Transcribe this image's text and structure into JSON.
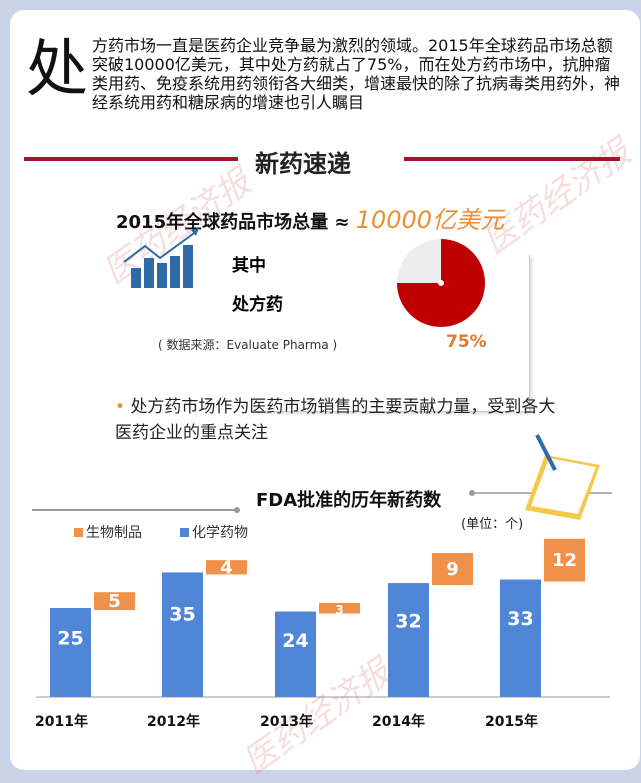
{
  "intro": {
    "drop_cap": "处",
    "text": "方药市场一直是医药企业竞争最为激烈的领域。2015年全球药品市场总额突破10000亿美元，其中处方药就占了75%，而在处方药市场中，抗肿瘤类用药、免疫系统用药领衔各大细类，增速最快的除了抗病毒类用药外，神经系统用药和糖尿病的增速也引人瞩目"
  },
  "section_title": "新药速递",
  "market": {
    "label": "2015年全球药品市场总量 ≈ ",
    "value": "10000亿美元",
    "sub1": "其中",
    "sub2": "处方药",
    "source": "( 数据来源：Evaluate Pharma )",
    "share_label": "75%",
    "share": 0.75
  },
  "bullet": "处方药市场作为医药市场销售的主要贡献力量，受到各大医药企业的重点关注",
  "watermark": "医药经济报",
  "colors": {
    "red": "#c00000",
    "orange": "#f0914a",
    "blue": "#4f86d6"
  },
  "chart_data": {
    "type": "bar",
    "title": "FDA批准的历年新药数",
    "unit": "(单位：个)",
    "categories": [
      "2011年",
      "2012年",
      "2013年",
      "2014年",
      "2015年"
    ],
    "series": [
      {
        "name": "生物制品",
        "values": [
          5,
          4,
          3,
          9,
          12
        ]
      },
      {
        "name": "化学药物",
        "values": [
          25,
          35,
          24,
          32,
          33
        ]
      }
    ],
    "legend": "top-left",
    "grid": false
  }
}
